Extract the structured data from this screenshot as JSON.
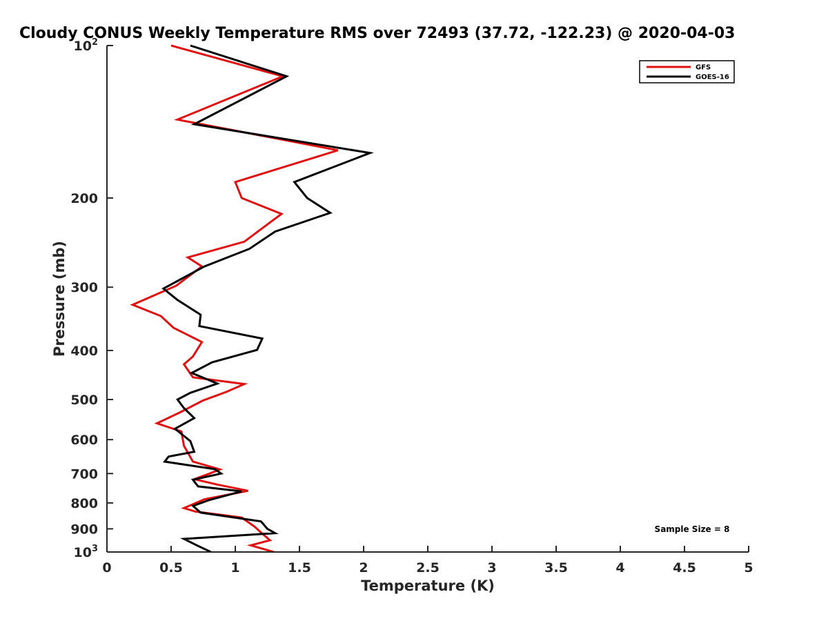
{
  "chart_data": {
    "type": "line",
    "title": "Cloudy CONUS Weekly Temperature RMS over 72493 (37.72, -122.23) @ 2020-04-03",
    "xlabel": "Temperature (K)",
    "ylabel": "Pressure (mb)",
    "xlim": [
      0,
      5
    ],
    "ylim": [
      1000,
      100
    ],
    "y_scale": "log",
    "y_reversed": true,
    "x_ticks": [
      "0",
      "0.5",
      "1",
      "1.5",
      "2",
      "2.5",
      "3",
      "3.5",
      "4",
      "4.5",
      "5"
    ],
    "y_ticks": [
      {
        "value": 100,
        "base": "10",
        "exp": "2"
      },
      {
        "value": 200,
        "label": "200"
      },
      {
        "value": 300,
        "label": "300"
      },
      {
        "value": 400,
        "label": "400"
      },
      {
        "value": 500,
        "label": "500"
      },
      {
        "value": 600,
        "label": "600"
      },
      {
        "value": 700,
        "label": "700"
      },
      {
        "value": 800,
        "label": "800"
      },
      {
        "value": 900,
        "label": "900"
      },
      {
        "value": 1000,
        "base": "10",
        "exp": "3"
      }
    ],
    "grid": false,
    "legend_position": "top-right",
    "annotation": "Sample Size = 8",
    "series": [
      {
        "name": "GFS",
        "color": "#e01010",
        "points": [
          [
            0.5,
            100
          ],
          [
            1.37,
            115
          ],
          [
            0.55,
            140
          ],
          [
            1.8,
            161
          ],
          [
            1.0,
            186
          ],
          [
            1.05,
            200
          ],
          [
            1.36,
            215
          ],
          [
            1.07,
            244
          ],
          [
            0.63,
            262
          ],
          [
            0.74,
            273
          ],
          [
            0.54,
            298
          ],
          [
            0.2,
            325
          ],
          [
            0.42,
            342
          ],
          [
            0.52,
            361
          ],
          [
            0.74,
            385
          ],
          [
            0.67,
            411
          ],
          [
            0.6,
            426
          ],
          [
            0.67,
            452
          ],
          [
            1.07,
            466
          ],
          [
            0.93,
            483
          ],
          [
            0.75,
            502
          ],
          [
            0.57,
            530
          ],
          [
            0.39,
            557
          ],
          [
            0.58,
            578
          ],
          [
            0.6,
            617
          ],
          [
            0.67,
            663
          ],
          [
            0.88,
            687
          ],
          [
            0.8,
            700
          ],
          [
            0.68,
            718
          ],
          [
            0.86,
            736
          ],
          [
            1.1,
            757
          ],
          [
            0.76,
            787
          ],
          [
            0.6,
            819
          ],
          [
            0.69,
            832
          ],
          [
            1.05,
            855
          ],
          [
            1.15,
            891
          ],
          [
            1.2,
            915
          ],
          [
            1.27,
            948
          ],
          [
            1.12,
            970
          ],
          [
            1.3,
            1000
          ]
        ]
      },
      {
        "name": "GOES-16",
        "color": "#000000",
        "points": [
          [
            0.65,
            100
          ],
          [
            1.4,
            115
          ],
          [
            0.68,
            143
          ],
          [
            2.05,
            163
          ],
          [
            1.46,
            186
          ],
          [
            1.56,
            200
          ],
          [
            1.74,
            214
          ],
          [
            1.31,
            233
          ],
          [
            1.11,
            252
          ],
          [
            0.76,
            273
          ],
          [
            0.44,
            302
          ],
          [
            0.55,
            318
          ],
          [
            0.73,
            340
          ],
          [
            0.72,
            358
          ],
          [
            1.21,
            379
          ],
          [
            1.17,
            399
          ],
          [
            0.82,
            422
          ],
          [
            0.66,
            443
          ],
          [
            0.86,
            465
          ],
          [
            0.65,
            485
          ],
          [
            0.55,
            500
          ],
          [
            0.6,
            520
          ],
          [
            0.68,
            544
          ],
          [
            0.53,
            571
          ],
          [
            0.65,
            604
          ],
          [
            0.68,
            634
          ],
          [
            0.48,
            648
          ],
          [
            0.45,
            663
          ],
          [
            0.84,
            686
          ],
          [
            0.89,
            700
          ],
          [
            0.67,
            720
          ],
          [
            0.71,
            742
          ],
          [
            1.05,
            759
          ],
          [
            0.8,
            789
          ],
          [
            0.67,
            811
          ],
          [
            0.73,
            836
          ],
          [
            1.2,
            870
          ],
          [
            1.25,
            900
          ],
          [
            1.31,
            918
          ],
          [
            0.6,
            942
          ],
          [
            0.7,
            970
          ],
          [
            0.81,
            1000
          ]
        ]
      }
    ]
  }
}
